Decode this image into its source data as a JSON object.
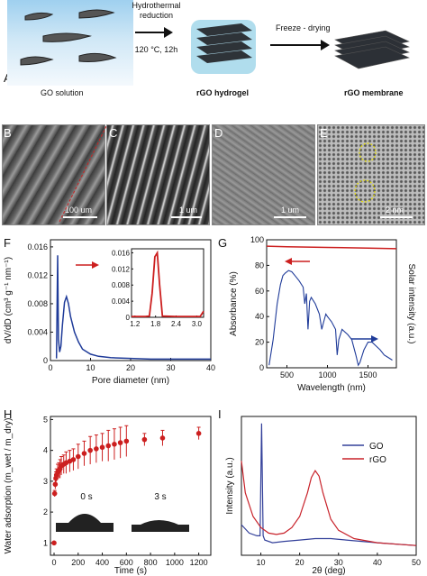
{
  "panel_a": {
    "label": "A",
    "step1_label_line1": "Hydrothermal",
    "step1_label_line2": "reduction",
    "step1_condition": "120 °C, 12h",
    "step2_label": "Freeze - drying",
    "go_solution": "GO solution",
    "rgo_hydrogel": "rGO hydrogel",
    "rgo_membrane": "rGO membrane"
  },
  "panel_b": {
    "label": "B",
    "scale": "100 um"
  },
  "panel_c": {
    "label": "C",
    "scale": "1 um"
  },
  "panel_d": {
    "label": "D",
    "scale": "1 um"
  },
  "panel_e": {
    "label": "E",
    "scale": "2 nm"
  },
  "colors": {
    "red": "#cc1f1f",
    "blue": "#1f3b99",
    "go_blue": "#33409a",
    "rgo_red": "#c8222a"
  },
  "chart_data": [
    {
      "panel": "F",
      "type": "line",
      "xlabel": "Pore diameter (nm)",
      "ylabel": "dV/dD (cm³ g⁻¹ nm⁻¹)",
      "xlim": [
        0,
        40
      ],
      "ylim": [
        0,
        0.017
      ],
      "xticks": [
        "0",
        "10",
        "20",
        "30",
        "40"
      ],
      "yticks": [
        "0",
        "0.004",
        "0.008",
        "0.012",
        "0.016"
      ],
      "series": [
        {
          "x": [
            1.5,
            1.8,
            2.0,
            2.3,
            2.6,
            3.0,
            3.5,
            4.0,
            4.5,
            5.0,
            6.0,
            7.0,
            8.0,
            10,
            12,
            15,
            20,
            25,
            30,
            35,
            40
          ],
          "y": [
            0.0003,
            0.0148,
            0.003,
            0.0012,
            0.002,
            0.005,
            0.0082,
            0.009,
            0.008,
            0.0062,
            0.004,
            0.0026,
            0.0016,
            0.0009,
            0.0006,
            0.0004,
            0.0003,
            0.0002,
            0.0002,
            0.0002,
            0.0002
          ]
        }
      ],
      "inset": {
        "xlim": [
          1.1,
          3.2
        ],
        "ylim": [
          0,
          0.017
        ],
        "xticks": [
          "1.2",
          "1.8",
          "2.4",
          "3.0"
        ],
        "yticks": [
          "0",
          "0.004",
          "0.008",
          "0.012",
          "0.016"
        ],
        "series": [
          {
            "x": [
              1.1,
              1.3,
              1.5,
              1.62,
              1.7,
              1.78,
              1.85,
              1.92,
              2.0,
              2.4,
              2.8,
              3.1,
              3.2
            ],
            "y": [
              0.0002,
              0.0002,
              0.0002,
              0.0003,
              0.006,
              0.015,
              0.016,
              0.008,
              0.0003,
              0.0002,
              0.0002,
              0.0002,
              0.0015
            ]
          }
        ]
      }
    },
    {
      "panel": "G",
      "type": "line",
      "xlabel": "Wavelength (nm)",
      "ylabel": "Absorbance (%)",
      "ylabel_right": "Solar intensity (a.u.)",
      "xlim": [
        250,
        1850
      ],
      "ylim": [
        0,
        100
      ],
      "xticks": [
        "500",
        "1000",
        "1500"
      ],
      "yticks": [
        "0",
        "20",
        "40",
        "60",
        "80",
        "100"
      ],
      "series": [
        {
          "name": "Absorbance",
          "x": [
            250,
            500,
            1000,
            1500,
            1850
          ],
          "y": [
            95,
            94.5,
            94,
            93.5,
            93
          ]
        },
        {
          "name": "Solar intensity",
          "x": [
            280,
            330,
            380,
            420,
            450,
            480,
            520,
            560,
            600,
            650,
            700,
            720,
            740,
            760,
            780,
            800,
            850,
            900,
            930,
            950,
            980,
            1000,
            1050,
            1100,
            1120,
            1140,
            1180,
            1250,
            1300,
            1350,
            1380,
            1400,
            1450,
            1500,
            1550,
            1600,
            1650,
            1700,
            1750,
            1800
          ],
          "y": [
            2,
            22,
            50,
            65,
            72,
            74,
            76,
            75,
            72,
            68,
            63,
            50,
            58,
            30,
            52,
            55,
            50,
            42,
            30,
            35,
            42,
            40,
            36,
            30,
            10,
            22,
            30,
            26,
            22,
            10,
            2,
            4,
            14,
            20,
            20,
            17,
            14,
            10,
            8,
            6
          ]
        }
      ]
    },
    {
      "panel": "H",
      "type": "scatter",
      "xlabel": "Time (s)",
      "ylabel": "Water adsorption (m_wet / m_dry)",
      "xlim": [
        -30,
        1300
      ],
      "ylim": [
        0.6,
        5.1
      ],
      "xticks": [
        "0",
        "200",
        "400",
        "600",
        "800",
        "1000",
        "1200"
      ],
      "yticks": [
        "1",
        "2",
        "3",
        "4",
        "5"
      ],
      "annotations": [
        "0 s",
        "3 s"
      ],
      "series": [
        {
          "x": [
            0,
            5,
            10,
            15,
            20,
            30,
            40,
            50,
            60,
            80,
            100,
            130,
            160,
            200,
            250,
            300,
            350,
            400,
            450,
            500,
            550,
            600,
            750,
            900,
            1200
          ],
          "y": [
            1.0,
            2.6,
            2.9,
            3.1,
            3.2,
            3.3,
            3.35,
            3.4,
            3.5,
            3.55,
            3.6,
            3.65,
            3.7,
            3.8,
            3.9,
            4.0,
            4.05,
            4.1,
            4.15,
            4.2,
            4.25,
            4.3,
            4.35,
            4.4,
            4.55
          ],
          "err": [
            0,
            0.1,
            0.15,
            0.2,
            0.2,
            0.25,
            0.25,
            0.3,
            0.3,
            0.3,
            0.35,
            0.35,
            0.35,
            0.4,
            0.4,
            0.45,
            0.45,
            0.45,
            0.5,
            0.5,
            0.5,
            0.5,
            0.2,
            0.25,
            0.2
          ]
        }
      ]
    },
    {
      "panel": "I",
      "type": "line",
      "xlabel": "2θ (deg)",
      "ylabel": "Intensity (a.u.)",
      "xlim": [
        5,
        50
      ],
      "ylim": [
        0,
        100
      ],
      "xticks": [
        "10",
        "20",
        "30",
        "40",
        "50"
      ],
      "series": [
        {
          "name": "GO",
          "x": [
            5,
            7,
            9,
            9.8,
            10.2,
            10.6,
            11,
            13,
            16,
            20,
            24,
            28,
            32,
            36,
            40,
            45,
            50
          ],
          "y": [
            22,
            16,
            14,
            14,
            95,
            14,
            11,
            9,
            10,
            11,
            12,
            12,
            11,
            10,
            9,
            8,
            7
          ]
        },
        {
          "name": "rGO",
          "x": [
            5,
            6,
            8,
            10,
            12,
            14,
            16,
            18,
            20,
            22,
            23,
            24,
            25,
            26,
            28,
            30,
            34,
            40,
            45,
            50
          ],
          "y": [
            68,
            45,
            28,
            20,
            16,
            15,
            16,
            20,
            28,
            45,
            56,
            61,
            57,
            45,
            26,
            18,
            12,
            9,
            8,
            7
          ]
        }
      ]
    }
  ],
  "panel_f": {
    "label": "F"
  },
  "panel_g": {
    "label": "G"
  },
  "panel_h": {
    "label": "H"
  },
  "panel_i": {
    "label": "I"
  }
}
